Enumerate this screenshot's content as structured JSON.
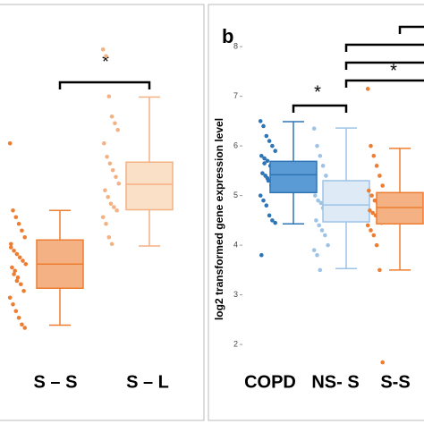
{
  "chart_data": [
    {
      "type": "box",
      "categories": [
        "S – S",
        "S – L"
      ],
      "ylim": [
        0.07,
        6.27
      ],
      "annotations": [
        "*"
      ],
      "series": [
        {
          "color": "#ed7d31",
          "fill": "#f4b183",
          "min": 1.49,
          "q1": 2.04,
          "median": 2.4,
          "q3": 2.76,
          "max": 3.2,
          "points": [
            4.2,
            3.2,
            3.1,
            3.0,
            2.9,
            2.8,
            2.7,
            2.6,
            2.55,
            2.5,
            2.45,
            2.4,
            2.35,
            2.3,
            2.2,
            2.1,
            2.0,
            1.9,
            1.8,
            1.7,
            1.6,
            1.5,
            1.45,
            2.65,
            2.25,
            2.15
          ]
        },
        {
          "color": "#f4b183",
          "fill": "#fbe0c8",
          "min": 2.67,
          "q1": 3.21,
          "median": 3.59,
          "q3": 3.92,
          "max": 4.89,
          "points": [
            5.6,
            5.5,
            4.9,
            4.6,
            4.5,
            4.4,
            4.2,
            4.0,
            3.9,
            3.8,
            3.7,
            3.6,
            3.5,
            3.4,
            3.3,
            3.25,
            3.2,
            3.1,
            3.0,
            2.8,
            2.7
          ]
        }
      ]
    },
    {
      "type": "box",
      "panel_label": "b",
      "y_label": "log2 transformed gene expression level",
      "categories": [
        "COPD",
        "NS- S",
        "S-S"
      ],
      "ylim": [
        0.47,
        8.85
      ],
      "yticks": [
        2,
        3,
        4,
        5,
        6,
        7,
        8
      ],
      "annotations": [
        "*",
        "*"
      ],
      "series": [
        {
          "color": "#2e75b6",
          "fill": "#5b9bd5",
          "min": 4.43,
          "q1": 5.06,
          "median": 5.42,
          "q3": 5.69,
          "max": 6.49,
          "points": [
            6.5,
            6.4,
            6.2,
            6.1,
            6.0,
            5.9,
            5.8,
            5.75,
            5.7,
            5.6,
            5.55,
            5.5,
            5.45,
            5.4,
            5.3,
            5.2,
            5.1,
            5.0,
            4.9,
            4.8,
            4.6,
            4.5,
            4.45,
            3.8,
            5.65,
            5.35
          ]
        },
        {
          "color": "#9dc3e6",
          "fill": "#deebf7",
          "min": 3.53,
          "q1": 4.47,
          "median": 4.81,
          "q3": 5.3,
          "max": 6.36,
          "points": [
            6.35,
            6.0,
            5.8,
            5.6,
            5.4,
            5.2,
            5.0,
            4.9,
            4.85,
            4.8,
            4.7,
            4.6,
            4.5,
            4.4,
            4.3,
            4.2,
            4.0,
            3.9,
            3.8,
            3.5,
            4.75,
            4.65
          ]
        },
        {
          "color": "#ed7d31",
          "fill": "#f4b183",
          "min": 3.5,
          "q1": 4.43,
          "median": 4.76,
          "q3": 5.06,
          "max": 5.95,
          "points": [
            7.15,
            6.0,
            5.8,
            5.6,
            5.4,
            5.2,
            5.1,
            5.0,
            4.9,
            4.85,
            4.8,
            4.75,
            4.7,
            4.65,
            4.6,
            4.5,
            4.45,
            4.4,
            4.3,
            4.2,
            4.0,
            3.5,
            1.64
          ]
        }
      ]
    }
  ]
}
